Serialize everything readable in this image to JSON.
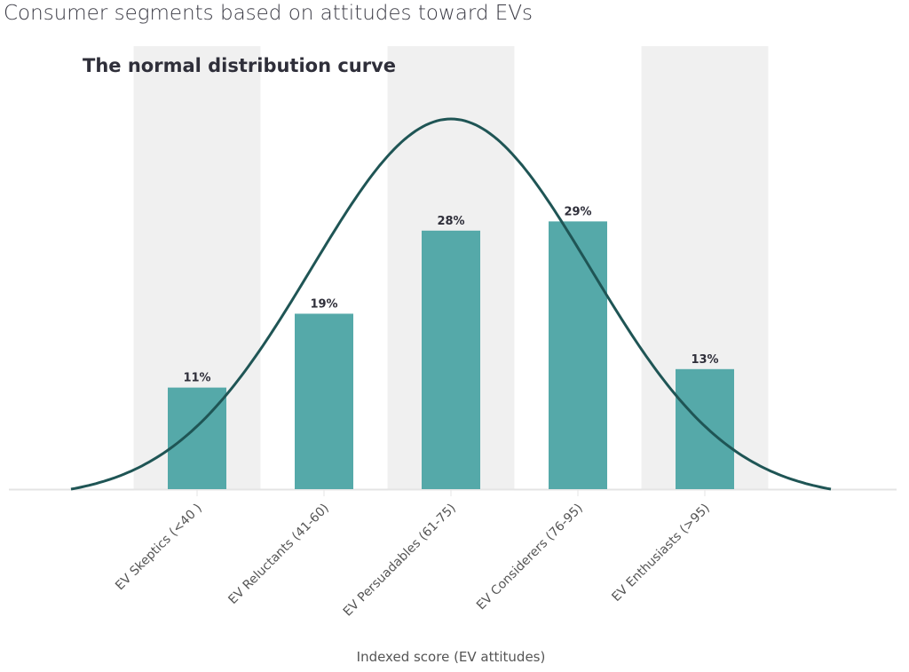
{
  "title": "Consumer segments based on attitudes toward EVs",
  "chart_data": {
    "type": "bar",
    "subtitle": "The normal distribution curve",
    "categories": [
      "EV Skeptics (<40 )",
      "EV Reluctants (41-60)",
      "EV Persuadables (61-75)",
      "EV Considerers (76-95)",
      "EV Enthusiasts (>95)"
    ],
    "values": [
      11,
      19,
      28,
      29,
      13
    ],
    "data_labels": [
      "11%",
      "19%",
      "28%",
      "29%",
      "13%"
    ],
    "xlabel": "Indexed score (EV attitudes)",
    "ylabel": "",
    "ylim": [
      0,
      40
    ],
    "overlay": "normal distribution curve",
    "colors": {
      "bar": "#55a9a9",
      "curve": "#1f5555",
      "band": "#f0f0f0",
      "text": "#2f2f3a"
    }
  }
}
